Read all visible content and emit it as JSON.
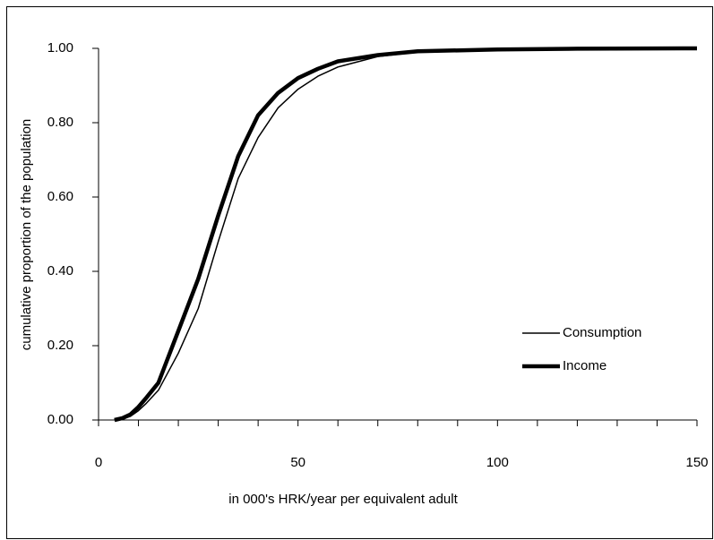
{
  "chart_data": {
    "type": "line",
    "y_label": "cumulative proportion of the population",
    "x_label": "in 000's HRK/year per equivalent adult",
    "x": [
      4,
      6,
      8,
      10,
      12,
      15,
      20,
      25,
      30,
      35,
      40,
      45,
      50,
      55,
      60,
      70,
      80,
      100,
      120,
      150
    ],
    "series": [
      {
        "name": "Consumption",
        "color": "#000000",
        "values": [
          0,
          0.003,
          0.01,
          0.025,
          0.045,
          0.08,
          0.18,
          0.3,
          0.48,
          0.65,
          0.76,
          0.84,
          0.89,
          0.925,
          0.95,
          0.978,
          0.99,
          0.997,
          0.999,
          1.0
        ]
      },
      {
        "name": "Income",
        "color": "#000000",
        "values": [
          0,
          0.005,
          0.015,
          0.035,
          0.06,
          0.1,
          0.24,
          0.38,
          0.55,
          0.71,
          0.82,
          0.88,
          0.92,
          0.945,
          0.965,
          0.982,
          0.992,
          0.997,
          0.999,
          1.0
        ]
      }
    ],
    "xlim": [
      0,
      150
    ],
    "xticks": [
      0,
      50,
      100,
      150
    ],
    "xminorticks": [
      10,
      20,
      30,
      40,
      60,
      70,
      80,
      90,
      110,
      120,
      130,
      140
    ],
    "ylim": [
      0,
      1
    ],
    "yticks": [
      {
        "value": 0,
        "label": "0.00"
      },
      {
        "value": 0.2,
        "label": "0.20"
      },
      {
        "value": 0.4,
        "label": "0.40"
      },
      {
        "value": 0.6,
        "label": "0.60"
      },
      {
        "value": 0.8,
        "label": "0.80"
      },
      {
        "value": 1,
        "label": "1.00"
      }
    ],
    "legend": "lower right",
    "grid": false
  }
}
